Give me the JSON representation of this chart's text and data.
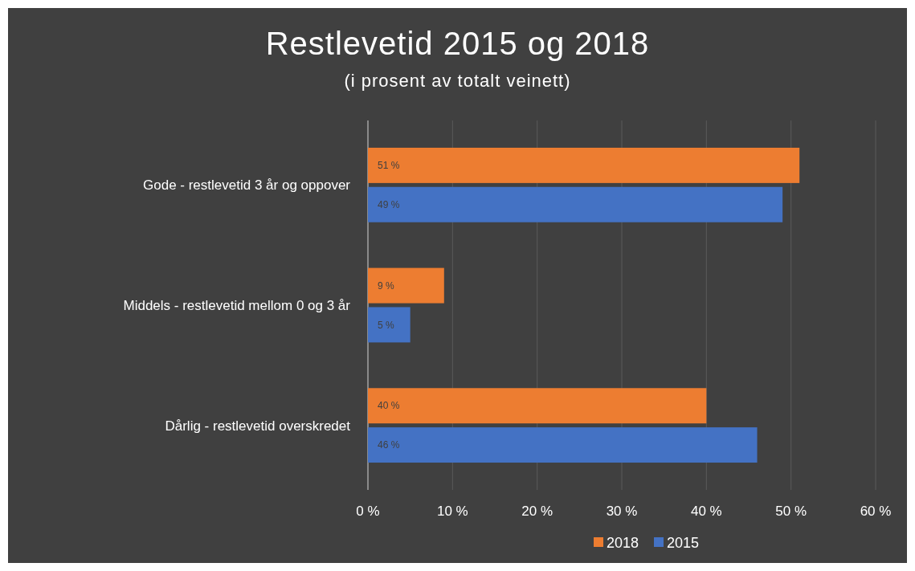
{
  "chart_data": {
    "type": "bar",
    "orientation": "horizontal",
    "title": "Restlevetid 2015 og 2018",
    "subtitle": "(i prosent av totalt veinett)",
    "categories": [
      "Gode - restlevetid 3 år og oppover",
      "Middels - restlevetid mellom 0 og 3 år",
      "Dårlig - restlevetid overskredet"
    ],
    "series": [
      {
        "name": "2018",
        "color": "#ed7d31",
        "values": [
          51,
          9,
          40
        ],
        "value_labels": [
          "51 %",
          "9 %",
          "40 %"
        ]
      },
      {
        "name": "2015",
        "color": "#4472c4",
        "values": [
          49,
          5,
          46
        ],
        "value_labels": [
          "49 %",
          "5 %",
          "46 %"
        ]
      }
    ],
    "xlim": [
      0,
      60
    ],
    "xticks": [
      {
        "value": 0,
        "label": "0 %"
      },
      {
        "value": 10,
        "label": "10 %"
      },
      {
        "value": 20,
        "label": "20 %"
      },
      {
        "value": 30,
        "label": "30 %"
      },
      {
        "value": 40,
        "label": "40 %"
      },
      {
        "value": 50,
        "label": "50 %"
      },
      {
        "value": 60,
        "label": "60 %"
      }
    ],
    "grid": "x",
    "legend": "bottom"
  }
}
